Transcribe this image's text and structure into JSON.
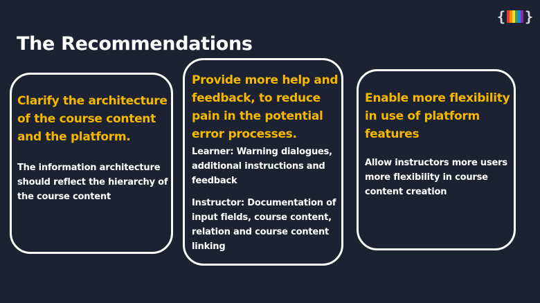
{
  "slide": {
    "title": "The Recommendations",
    "logo": {
      "icon": "brand-logo-icon",
      "bar_colors": [
        "#e53935",
        "#fb8c00",
        "#fdd835",
        "#43a047",
        "#1e88e5",
        "#8e24aa"
      ]
    },
    "colors": {
      "background": "#1d2233",
      "heading_accent": "#f5b800",
      "text": "#ffffff"
    },
    "cards": [
      {
        "heading": "Clarify the architecture of the course content and the platform.",
        "body": "The information architecture should reflect the hierarchy of the course content"
      },
      {
        "heading": "Provide more help and feedback, to reduce pain in the potential error processes.",
        "body_learner": "Learner: Warning dialogues, additional instructions and feedback",
        "body_instructor": "Instructor: Documentation of input fields, course content, relation and course content linking"
      },
      {
        "heading": "Enable more flexibility in use of platform features",
        "body": "Allow instructors more users more flexibility in course content creation"
      }
    ]
  }
}
